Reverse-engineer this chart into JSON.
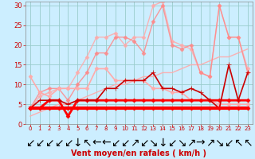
{
  "xlabel": "Vent moyen/en rafales ( km/h )",
  "background_color": "#cceeff",
  "grid_color": "#99cccc",
  "xlim": [
    -0.5,
    23.5
  ],
  "ylim": [
    0,
    31
  ],
  "yticks": [
    0,
    5,
    10,
    15,
    20,
    25,
    30
  ],
  "xticks": [
    0,
    1,
    2,
    3,
    4,
    5,
    6,
    7,
    8,
    9,
    10,
    11,
    12,
    13,
    14,
    15,
    16,
    17,
    18,
    19,
    20,
    21,
    22,
    23
  ],
  "series": [
    {
      "x": [
        0,
        1,
        2,
        3,
        4,
        5,
        6,
        7,
        8,
        9,
        10,
        11,
        12,
        13,
        14,
        15,
        16,
        17,
        18,
        19,
        20,
        21,
        22,
        23
      ],
      "y": [
        4,
        4,
        4,
        4,
        4,
        4,
        4,
        4,
        4,
        4,
        4,
        4,
        4,
        4,
        4,
        4,
        4,
        4,
        4,
        4,
        4,
        4,
        4,
        4
      ],
      "color": "#ff0000",
      "linewidth": 3.0,
      "marker": "D",
      "markersize": 2.5,
      "alpha": 1.0,
      "zorder": 5
    },
    {
      "x": [
        0,
        1,
        2,
        3,
        4,
        5,
        6,
        7,
        8,
        9,
        10,
        11,
        12,
        13,
        14,
        15,
        16,
        17,
        18,
        19,
        20,
        21,
        22,
        23
      ],
      "y": [
        4,
        4,
        6,
        6,
        2,
        6,
        6,
        6,
        6,
        6,
        6,
        6,
        6,
        6,
        6,
        6,
        6,
        6,
        6,
        6,
        6,
        6,
        6,
        6
      ],
      "color": "#ff0000",
      "linewidth": 2.0,
      "marker": "D",
      "markersize": 2.5,
      "alpha": 1.0,
      "zorder": 4
    },
    {
      "x": [
        0,
        1,
        2,
        3,
        4,
        5,
        6,
        7,
        8,
        9,
        10,
        11,
        12,
        13,
        14,
        15,
        16,
        17,
        18,
        19,
        20,
        21,
        22,
        23
      ],
      "y": [
        4,
        6,
        6,
        6,
        5,
        6,
        6,
        6,
        9,
        9,
        11,
        11,
        11,
        13,
        9,
        9,
        8,
        9,
        8,
        6,
        4,
        15,
        6,
        13
      ],
      "color": "#cc0000",
      "linewidth": 1.2,
      "marker": "+",
      "markersize": 4,
      "alpha": 1.0,
      "zorder": 4
    },
    {
      "x": [
        0,
        1,
        2,
        3,
        4,
        5,
        6,
        7,
        8,
        9,
        10,
        11,
        12,
        13,
        14,
        15,
        16,
        17,
        18,
        19,
        20,
        21,
        22,
        23
      ],
      "y": [
        2,
        3,
        4,
        5,
        5,
        6,
        7,
        8,
        9,
        10,
        10,
        11,
        12,
        12,
        13,
        13,
        14,
        15,
        15,
        16,
        17,
        17,
        18,
        19
      ],
      "color": "#ffaaaa",
      "linewidth": 1.0,
      "marker": null,
      "markersize": 0,
      "alpha": 0.9,
      "zorder": 2
    },
    {
      "x": [
        0,
        1,
        2,
        3,
        4,
        5,
        6,
        7,
        8,
        9,
        10,
        11,
        12,
        13,
        14,
        15,
        16,
        17,
        18,
        19,
        20,
        21,
        22,
        23
      ],
      "y": [
        12,
        8,
        7,
        9,
        9,
        9,
        9,
        14,
        14,
        11,
        11,
        11,
        11,
        9,
        9,
        8,
        8,
        6,
        6,
        6,
        5,
        5,
        5,
        5
      ],
      "color": "#ffaaaa",
      "linewidth": 1.2,
      "marker": "D",
      "markersize": 2.5,
      "alpha": 1.0,
      "zorder": 3
    },
    {
      "x": [
        0,
        1,
        2,
        3,
        4,
        5,
        6,
        7,
        8,
        9,
        10,
        11,
        12,
        13,
        14,
        15,
        16,
        17,
        18,
        19,
        20,
        21,
        22,
        23
      ],
      "y": [
        4,
        7,
        8,
        9,
        9,
        13,
        17,
        22,
        22,
        23,
        20,
        22,
        22,
        30,
        31,
        21,
        20,
        19,
        13,
        12,
        30,
        22,
        22,
        14
      ],
      "color": "#ffaaaa",
      "linewidth": 1.0,
      "marker": "D",
      "markersize": 2.5,
      "alpha": 0.85,
      "zorder": 2
    },
    {
      "x": [
        0,
        1,
        2,
        3,
        4,
        5,
        6,
        7,
        8,
        9,
        10,
        11,
        12,
        13,
        14,
        15,
        16,
        17,
        18,
        19,
        20,
        21,
        22,
        23
      ],
      "y": [
        4,
        8,
        9,
        9,
        6,
        10,
        13,
        18,
        18,
        22,
        22,
        21,
        18,
        26,
        30,
        20,
        19,
        20,
        13,
        12,
        30,
        22,
        22,
        13
      ],
      "color": "#ff8888",
      "linewidth": 1.0,
      "marker": "D",
      "markersize": 2.5,
      "alpha": 0.85,
      "zorder": 2
    }
  ],
  "arrows": [
    "↙",
    "↙",
    "↙",
    "↙",
    "↙",
    "↓",
    "↖",
    "←",
    "←",
    "↙",
    "↙",
    "↗",
    "↙",
    "↘",
    "↓",
    "↙",
    "↘",
    "↗",
    "→",
    "↗",
    "↘",
    "↙",
    "↖",
    "↖"
  ],
  "xlabel_fontsize": 7,
  "tick_fontsize": 6,
  "tick_color": "#cc0000",
  "spine_color": "#888888"
}
